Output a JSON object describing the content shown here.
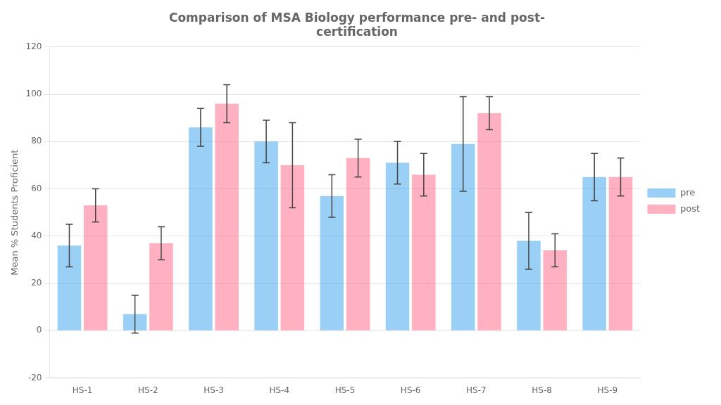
{
  "chart_data": {
    "type": "bar",
    "title": "Comparison of MSA Biology performance pre- and post-\ncertification",
    "ylabel": "Mean % Students Proficient",
    "categories": [
      "HS-1",
      "HS-2",
      "HS-3",
      "HS-4",
      "HS-5",
      "HS-6",
      "HS-7",
      "HS-8",
      "HS-9"
    ],
    "series": [
      {
        "name": "pre",
        "values": [
          36,
          7,
          86,
          80,
          57,
          71,
          79,
          38,
          65
        ],
        "errors": [
          9,
          8,
          8,
          9,
          9,
          9,
          20,
          12,
          10
        ]
      },
      {
        "name": "post",
        "values": [
          53,
          37,
          96,
          70,
          73,
          66,
          92,
          34,
          65
        ],
        "errors": [
          7,
          7,
          8,
          18,
          8,
          9,
          7,
          7,
          8
        ]
      }
    ],
    "ylim": [
      -20,
      120
    ],
    "yticks": [
      -20,
      0,
      20,
      40,
      60,
      80,
      100,
      120
    ],
    "grid": true,
    "legend": "right"
  }
}
